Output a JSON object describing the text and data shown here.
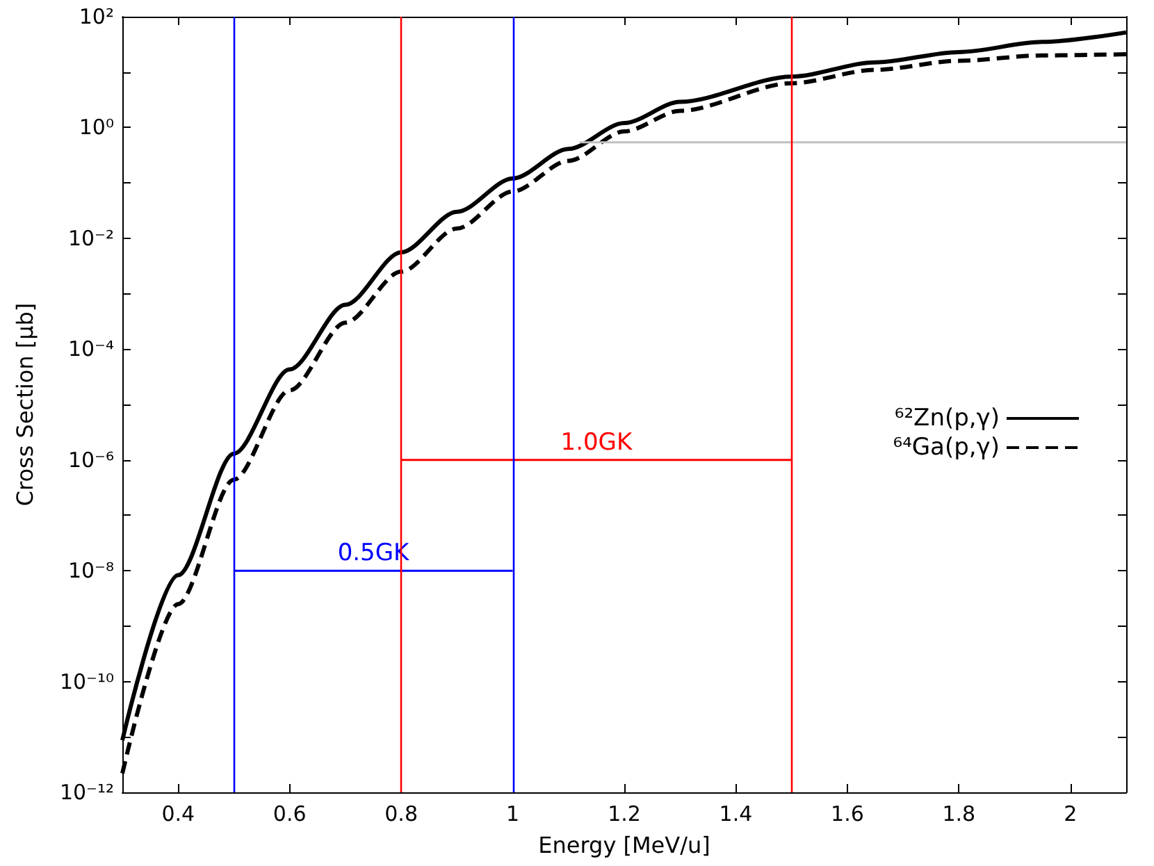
{
  "chart_data": {
    "type": "line",
    "xlabel": "Energy [MeV/u]",
    "ylabel": "Cross Section [μb]",
    "xlim": [
      0.3,
      2.1
    ],
    "xticks": [
      0.4,
      0.6,
      0.8,
      1,
      1.2,
      1.4,
      1.6,
      1.8,
      2
    ],
    "ylim": [
      1e-12,
      100
    ],
    "log": true,
    "yticks": [
      {
        "value": 1e-12,
        "label": "10⁻¹²"
      },
      {
        "value": 1e-11,
        "label": null
      },
      {
        "value": 1e-10,
        "label": "10⁻¹⁰"
      },
      {
        "value": 1e-09,
        "label": null
      },
      {
        "value": 1e-08,
        "label": "10⁻⁸"
      },
      {
        "value": 1e-07,
        "label": null
      },
      {
        "value": 1e-06,
        "label": "10⁻⁶"
      },
      {
        "value": 1e-05,
        "label": null
      },
      {
        "value": 0.0001,
        "label": "10⁻⁴"
      },
      {
        "value": 0.001,
        "label": null
      },
      {
        "value": 0.01,
        "label": "10⁻²"
      },
      {
        "value": 0.1,
        "label": null
      },
      {
        "value": 1,
        "label": "10⁰"
      },
      {
        "value": 10,
        "label": null
      },
      {
        "value": 100,
        "label": "10²"
      }
    ],
    "grid": false,
    "legend": "right",
    "marker": "none",
    "series": [
      {
        "name": "⁶²Zn(p,γ)",
        "color": "#000000",
        "line_style": "solid",
        "x": [
          0.3,
          0.4,
          0.5,
          0.6,
          0.7,
          0.8,
          0.9,
          1.0,
          1.1,
          1.2,
          1.3,
          1.5,
          1.65,
          1.8,
          1.95,
          2.1
        ],
        "values": [
          8.7e-12,
          8.3e-09,
          1.3e-06,
          4.3e-05,
          0.00063,
          0.0056,
          0.03,
          0.12,
          0.41,
          1.2,
          2.9,
          8.3,
          15,
          23,
          35,
          52
        ]
      },
      {
        "name": "⁶⁴Ga(p,γ)",
        "color": "#000000",
        "line_style": "dashed",
        "x": [
          0.3,
          0.4,
          0.5,
          0.6,
          0.7,
          0.8,
          0.9,
          1.0,
          1.1,
          1.2,
          1.3,
          1.5,
          1.65,
          1.8,
          1.95,
          2.1
        ],
        "values": [
          2.2e-12,
          2.5e-09,
          4.4e-07,
          1.8e-05,
          0.0003,
          0.0025,
          0.015,
          0.07,
          0.25,
          0.85,
          2.0,
          6.3,
          11,
          16,
          20,
          21
        ]
      },
      {
        "color": "#c0c0c0",
        "line_style": "solid",
        "x": [
          1.12,
          2.1
        ],
        "values": [
          0.54,
          0.54
        ]
      },
      {
        "name": "0.5GK",
        "color": "#0000ff",
        "line_style": "solid",
        "x": [
          0.5,
          1.0
        ],
        "values": [
          1e-08,
          1e-08
        ]
      },
      {
        "name": "1.0GK",
        "color": "#ff0000",
        "line_style": "solid",
        "x": [
          0.8,
          1.5
        ],
        "values": [
          1e-06,
          1e-06
        ]
      }
    ],
    "ref_lines": [
      {
        "axis": "x",
        "value": 0.5,
        "color": "#0000ff"
      },
      {
        "axis": "x",
        "value": 1.0,
        "color": "#0000ff"
      },
      {
        "axis": "x",
        "value": 0.8,
        "color": "#ff0000"
      },
      {
        "axis": "x",
        "value": 1.5,
        "color": "#ff0000"
      }
    ]
  }
}
